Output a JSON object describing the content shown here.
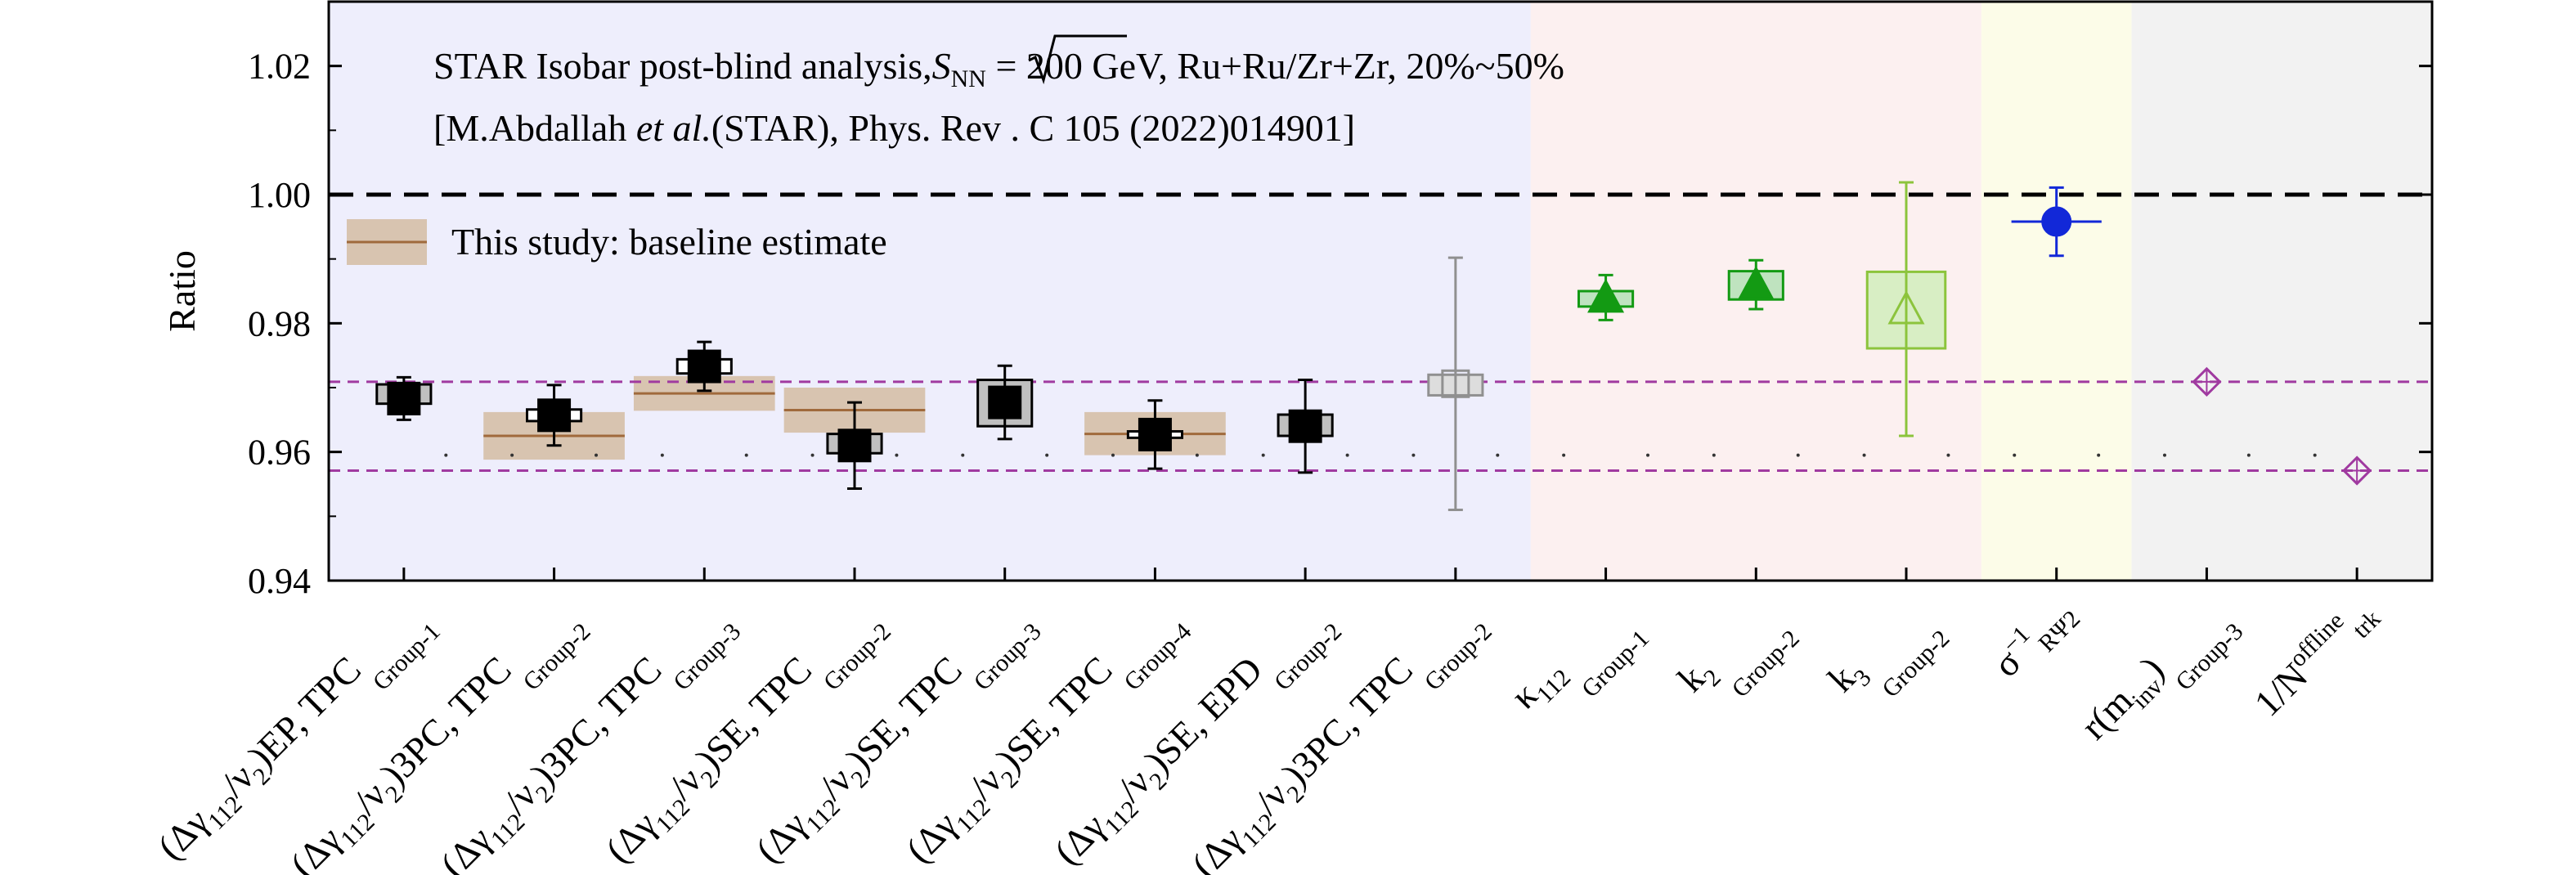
{
  "chart_data": {
    "type": "scatter",
    "ylabel": "Ratio",
    "ylim": [
      0.94,
      1.03
    ],
    "yticks": [
      0.94,
      0.96,
      0.98,
      1.0,
      1.02
    ],
    "yticklabels": [
      "0.94",
      "0.96",
      "0.98",
      "1.00",
      "1.02"
    ],
    "reference_line": 1.0,
    "band_lines": [
      0.9571,
      0.9709
    ],
    "band_line_color": "#a03aa0",
    "legend": {
      "label": "This study: baseline estimate",
      "position": "top-left"
    },
    "annotations": [
      {
        "id": "title",
        "prefix": "STAR Isobar post-blind analysis,",
        "symbol": "S",
        "symbol_sub": "NN",
        "suffix": " = 200 GeV, Ru+Ru/Zr+Zr, 20%~50%"
      },
      {
        "id": "reference",
        "before": "[M.Abdallah ",
        "italic": "et al.",
        "after": "(STAR), Phys. Rev . C 105 (2022)014901]"
      }
    ],
    "background_regions": [
      {
        "from": 0,
        "to": 8,
        "color": "#eeeefc"
      },
      {
        "from": 8,
        "to": 11,
        "color": "#fcf0f0"
      },
      {
        "from": 11,
        "to": 12,
        "color": "#fcfce8"
      },
      {
        "from": 12,
        "to": 14,
        "color": "#f2f2f2"
      }
    ],
    "categories": [
      {
        "label": "(Δγ112/ν2)EP, TPC",
        "main": "(Δγ",
        "sub1": "112",
        "mid": "/ν",
        "sub2": "2",
        "end": ")EP, TPC",
        "group": "Group-1"
      },
      {
        "label": "(Δγ112/ν2)3PC, TPC",
        "main": "(Δγ",
        "sub1": "112",
        "mid": "/ν",
        "sub2": "2",
        "end": ")3PC, TPC",
        "group": "Group-2"
      },
      {
        "label": "(Δγ112/ν2)3PC, TPC",
        "main": "(Δγ",
        "sub1": "112",
        "mid": "/ν",
        "sub2": "2",
        "end": ")3PC, TPC",
        "group": "Group-3"
      },
      {
        "label": "(Δγ112/ν2)SE, TPC",
        "main": "(Δγ",
        "sub1": "112",
        "mid": "/ν",
        "sub2": "2",
        "end": ")SE, TPC",
        "group": "Group-2"
      },
      {
        "label": "(Δγ112/ν2)SE, TPC",
        "main": "(Δγ",
        "sub1": "112",
        "mid": "/ν",
        "sub2": "2",
        "end": ")SE, TPC",
        "group": "Group-3"
      },
      {
        "label": "(Δγ112/ν2)SE, TPC",
        "main": "(Δγ",
        "sub1": "112",
        "mid": "/ν",
        "sub2": "2",
        "end": ")SE, TPC",
        "group": "Group-4"
      },
      {
        "label": "(Δγ112/ν2)SE, EPD",
        "main": "(Δγ",
        "sub1": "112",
        "mid": "/ν",
        "sub2": "2",
        "end": ")SE, EPD",
        "group": "Group-2"
      },
      {
        "label": "(Δγ112/ν2)3PC, TPC",
        "main": "(Δγ",
        "sub1": "112",
        "mid": "/ν",
        "sub2": "2",
        "end": ")3PC, TPC",
        "group": "Group-2"
      },
      {
        "label": "κ112",
        "main": "κ",
        "sub1": "112",
        "group": "Group-1"
      },
      {
        "label": "k2",
        "main": "k",
        "sub1": "2",
        "group": "Group-2"
      },
      {
        "label": "k3",
        "main": "k",
        "sub1": "3",
        "group": "Group-2"
      },
      {
        "label": "σ−1RΨ2",
        "main": "σ",
        "sup": "−1",
        "sub1": "RΨ2",
        "group": ""
      },
      {
        "label": "r(minv)",
        "main": "r(m",
        "sub1": "inv",
        "end": ")",
        "group": "Group-3"
      },
      {
        "label": "1/Ntrk offline",
        "main": "1/N",
        "sup": "offline",
        "sub1": "trk",
        "group": ""
      }
    ],
    "points": [
      {
        "index": 0,
        "y": 0.9683,
        "err_low": 0.0033,
        "err_high": 0.0033,
        "sys_low": 0.9675,
        "sys_high": 0.9705,
        "marker": "square",
        "filled": true,
        "color": "#000000",
        "box_fill": "#c0c0c0",
        "box_stroke": "#000000"
      },
      {
        "index": 1,
        "y": 0.9657,
        "err_low": 0.0047,
        "err_high": 0.0047,
        "sys_low": 0.9648,
        "sys_high": 0.9666,
        "marker": "square",
        "filled": true,
        "color": "#000000",
        "box_fill": "#ffffff",
        "box_stroke": "#000000"
      },
      {
        "index": 2,
        "y": 0.9733,
        "err_low": 0.0038,
        "err_high": 0.0038,
        "sys_low": 0.9722,
        "sys_high": 0.9744,
        "marker": "square",
        "filled": true,
        "color": "#000000",
        "box_fill": "#ffffff",
        "box_stroke": "#000000"
      },
      {
        "index": 3,
        "y": 0.961,
        "err_low": 0.0067,
        "err_high": 0.0067,
        "sys_low": 0.9598,
        "sys_high": 0.9628,
        "marker": "square",
        "filled": true,
        "color": "#000000",
        "box_fill": "#c0c0c0",
        "box_stroke": "#000000"
      },
      {
        "index": 4,
        "y": 0.9677,
        "err_low": 0.0057,
        "err_high": 0.0057,
        "sys_low": 0.964,
        "sys_high": 0.9712,
        "marker": "square",
        "filled": true,
        "color": "#000000",
        "box_fill": "#c0c0c0",
        "box_stroke": "#000000"
      },
      {
        "index": 5,
        "y": 0.9627,
        "err_low": 0.0053,
        "err_high": 0.0053,
        "sys_low": 0.9622,
        "sys_high": 0.9632,
        "marker": "square",
        "filled": true,
        "color": "#000000",
        "box_fill": "#ffffff",
        "box_stroke": "#000000"
      },
      {
        "index": 6,
        "y": 0.964,
        "err_low": 0.0072,
        "err_high": 0.0072,
        "sys_low": 0.9625,
        "sys_high": 0.9658,
        "marker": "square",
        "filled": true,
        "color": "#000000",
        "box_fill": "#c0c0c0",
        "box_stroke": "#000000"
      },
      {
        "index": 7,
        "y": 0.9706,
        "err_low": 0.0196,
        "err_high": 0.0196,
        "sys_low": 0.9688,
        "sys_high": 0.972,
        "marker": "square",
        "filled": false,
        "color": "#909090",
        "box_fill": "#dddddd",
        "box_stroke": "#909090"
      },
      {
        "index": 8,
        "y": 0.984,
        "err_low": 0.0035,
        "err_high": 0.0035,
        "sys_low": 0.9826,
        "sys_high": 0.985,
        "marker": "triangle",
        "filled": true,
        "color": "#139a13",
        "box_fill": "#bfe3bf",
        "box_stroke": "#139a13"
      },
      {
        "index": 9,
        "y": 0.986,
        "err_low": 0.0038,
        "err_high": 0.0038,
        "sys_low": 0.9837,
        "sys_high": 0.9881,
        "marker": "triangle",
        "filled": true,
        "color": "#139a13",
        "box_fill": "#bfe3bf",
        "box_stroke": "#139a13"
      },
      {
        "index": 10,
        "y": 0.9822,
        "err_low": 0.0197,
        "err_high": 0.0197,
        "sys_low": 0.9761,
        "sys_high": 0.988,
        "marker": "triangle",
        "filled": false,
        "color": "#8cc43c",
        "box_fill": "#d8eec4",
        "box_stroke": "#8cc43c"
      },
      {
        "index": 11,
        "y": 0.9958,
        "err_low": 0.0053,
        "err_high": 0.0053,
        "xerr": 0.3,
        "marker": "circle",
        "filled": true,
        "color": "#1228d8"
      },
      {
        "index": 12,
        "y": 0.9709,
        "err_low": 0,
        "err_high": 0,
        "marker": "diamond",
        "filled": false,
        "color": "#a03aa0"
      },
      {
        "index": 13,
        "y": 0.9571,
        "err_low": 0,
        "err_high": 0,
        "marker": "diamond",
        "filled": false,
        "color": "#a03aa0"
      }
    ],
    "baseline_bands": [
      {
        "index": 1,
        "low": 0.9588,
        "high": 0.9662,
        "center": 0.9625
      },
      {
        "index": 2,
        "low": 0.9664,
        "high": 0.9718,
        "center": 0.9691
      },
      {
        "index": 3,
        "low": 0.963,
        "high": 0.97,
        "center": 0.9665
      },
      {
        "index": 5,
        "low": 0.9595,
        "high": 0.9662,
        "center": 0.9628
      }
    ],
    "baseline_band_color": "#d8c4b0",
    "baseline_line_color": "#a06a3c",
    "dotted_row_y": 0.9595
  }
}
